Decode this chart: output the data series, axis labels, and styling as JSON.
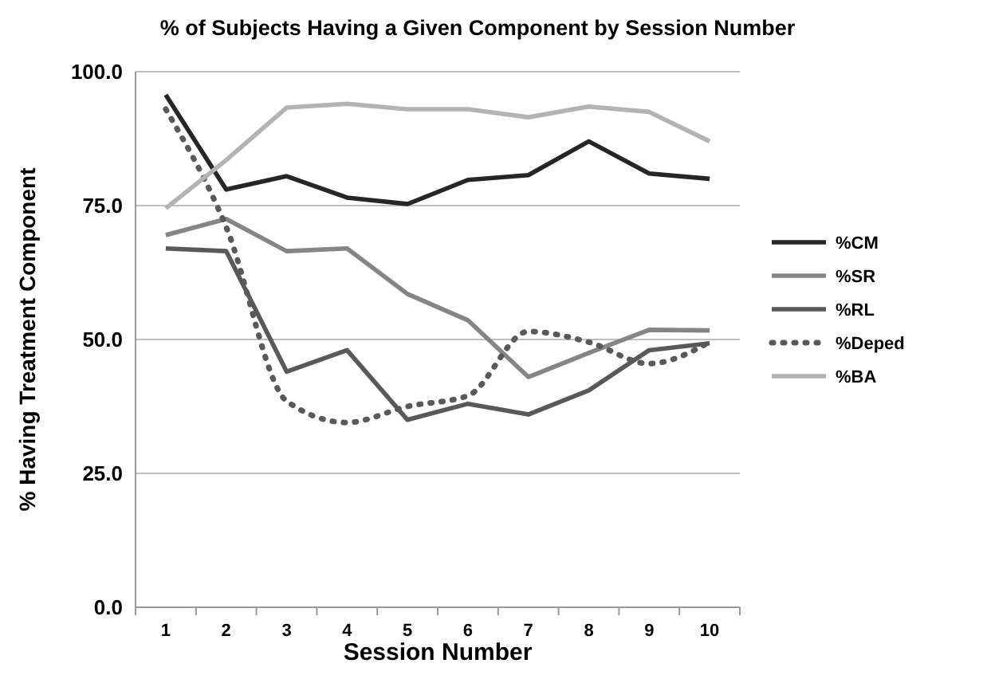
{
  "chart_data": {
    "type": "line",
    "title": "% of Subjects Having a Given Component by Session Number",
    "xlabel": "Session Number",
    "ylabel": "% Having Treatment Component",
    "categories": [
      "1",
      "2",
      "3",
      "4",
      "5",
      "6",
      "7",
      "8",
      "9",
      "10"
    ],
    "ylim": [
      0,
      100
    ],
    "yticks": [
      {
        "value": 0,
        "label": "0.0"
      },
      {
        "value": 25,
        "label": "25.0"
      },
      {
        "value": 50,
        "label": "50.0"
      },
      {
        "value": 75,
        "label": "75.0"
      },
      {
        "value": 100,
        "label": "100.0"
      }
    ],
    "grid": "y",
    "legend": "right",
    "marker": "none",
    "series": [
      {
        "name": "%CM",
        "color": "#262626",
        "line_style": "solid",
        "values": [
          95.7,
          78,
          80.5,
          76.5,
          75.3,
          79.8,
          80.7,
          87,
          81,
          80
        ]
      },
      {
        "name": "%SR",
        "color": "#858585",
        "line_style": "solid",
        "values": [
          69.5,
          72.5,
          66.5,
          67,
          58.5,
          53.6,
          43,
          47.5,
          51.8,
          51.7
        ]
      },
      {
        "name": "%RL",
        "color": "#595959",
        "line_style": "solid",
        "values": [
          67,
          66.5,
          44,
          48,
          35,
          38,
          36,
          40.5,
          48,
          49.3
        ]
      },
      {
        "name": "%Deped",
        "color": "#595959",
        "line_style": "dotted",
        "values": [
          93,
          71,
          38.5,
          34.5,
          37.5,
          39.5,
          51.5,
          49.5,
          45.5,
          49.5
        ]
      },
      {
        "name": "%BA",
        "color": "#b3b3b3",
        "line_style": "solid",
        "values": [
          74.5,
          83.5,
          93.3,
          94,
          93,
          93,
          91.5,
          93.5,
          92.5,
          87
        ]
      }
    ]
  }
}
